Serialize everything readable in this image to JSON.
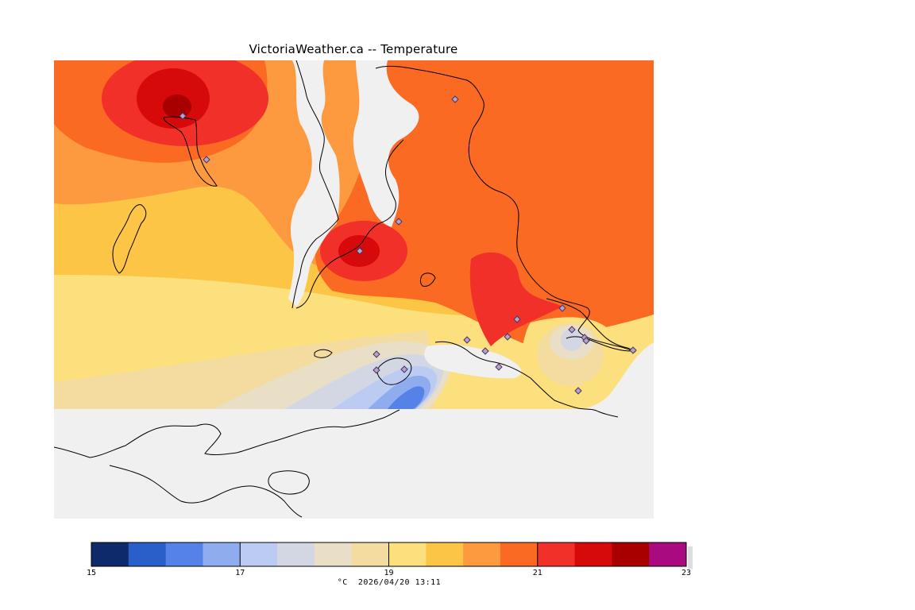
{
  "title": "VictoriaWeather.ca -- Temperature",
  "caption": {
    "unit": "°C",
    "timestamp": "2026/04/20 13:11"
  },
  "legend": {
    "min": 15,
    "max": 23,
    "tick_labels": [
      "15",
      "17",
      "19",
      "21",
      "23"
    ],
    "tick_values": [
      15,
      17,
      19,
      21,
      23
    ],
    "colors": [
      "#0f2a6b",
      "#2a5ec9",
      "#5582e6",
      "#8facef",
      "#bccbf2",
      "#d3d7e3",
      "#e9dfc6",
      "#f4dca0",
      "#fde07e",
      "#fdc546",
      "#fd9a3f",
      "#fb6a22",
      "#f2302a",
      "#d60a0a",
      "#a80000",
      "#aa0a7f"
    ]
  },
  "map": {
    "background_color": "#f0f0f0",
    "land_color_unshaded": "#ffffff",
    "station_marker": "diamond-icon",
    "station_count": 19
  }
}
